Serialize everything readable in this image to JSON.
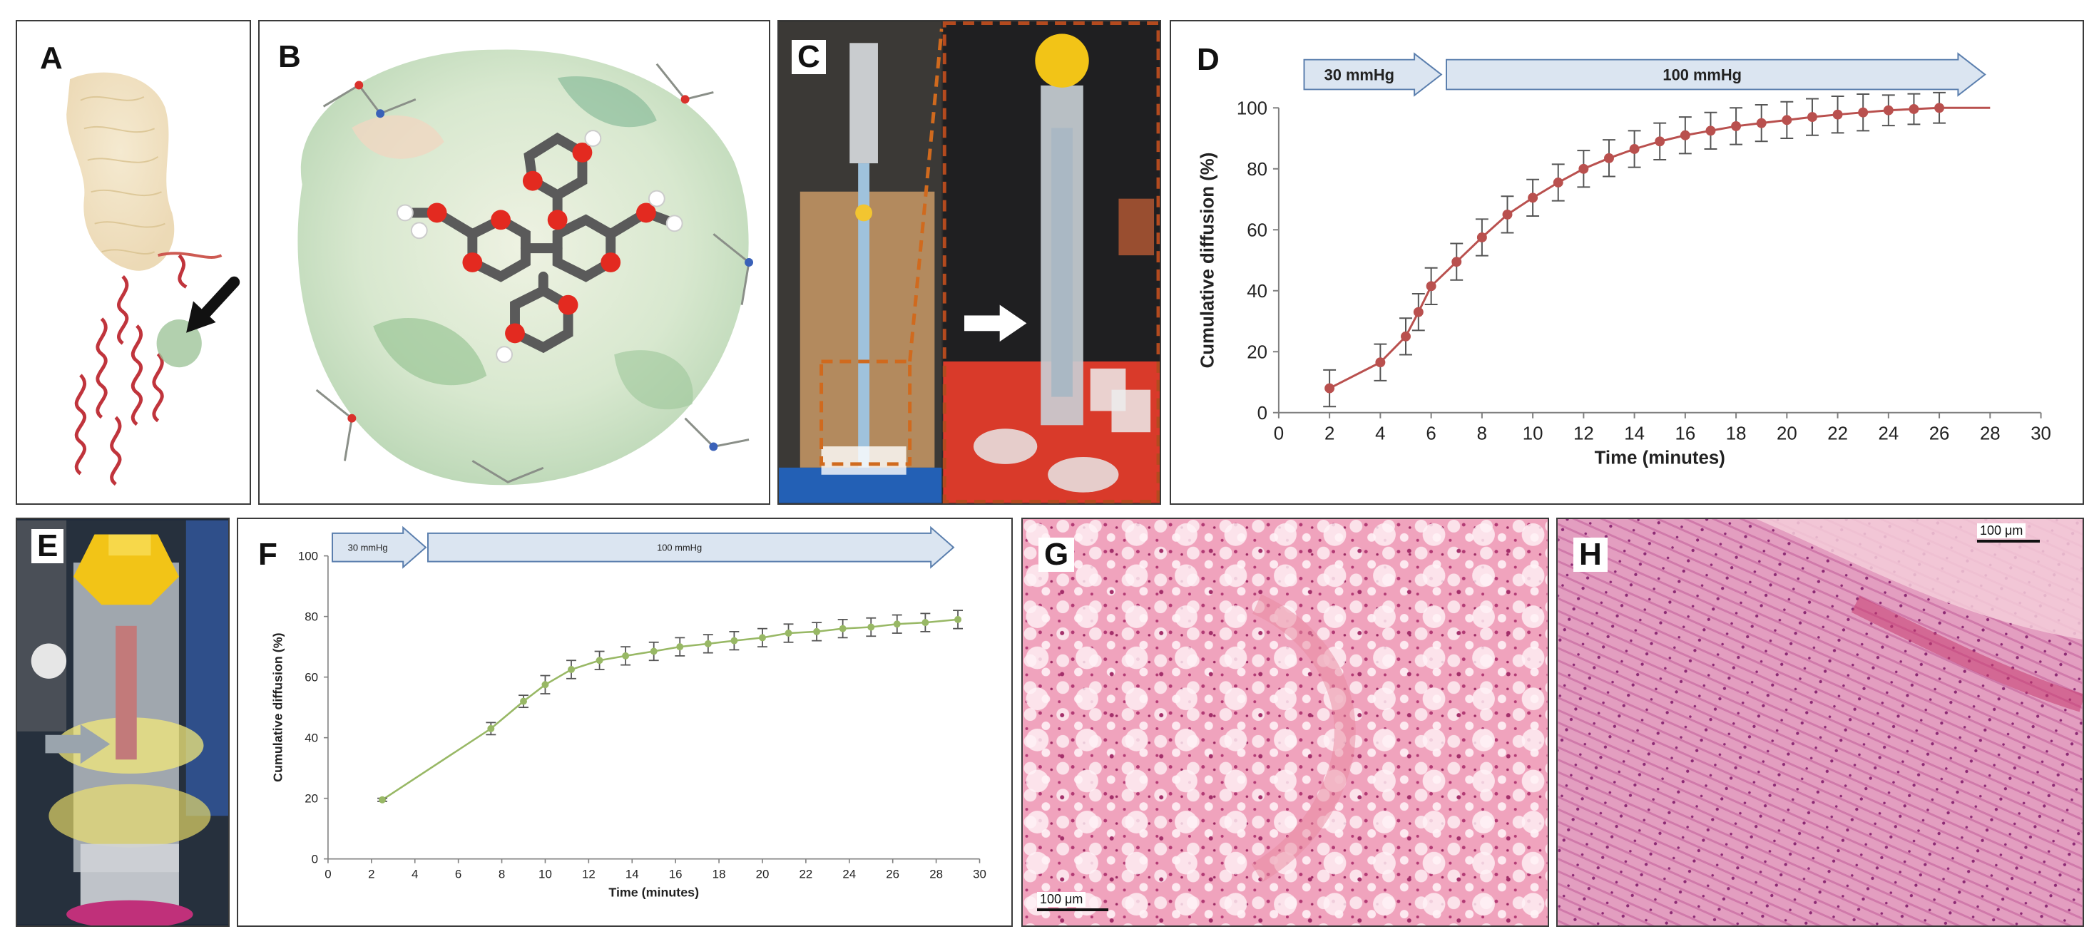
{
  "panels": {
    "a": {
      "label": "A"
    },
    "b": {
      "label": "B"
    },
    "c": {
      "label": "C"
    },
    "d": {
      "label": "D"
    },
    "e": {
      "label": "E"
    },
    "f": {
      "label": "F"
    },
    "g": {
      "label": "G",
      "scale_bar": "100 μm"
    },
    "h": {
      "label": "H",
      "scale_bar": "100 μm"
    }
  },
  "colors": {
    "chart_d_series": "#b9504e",
    "chart_f_series": "#98b865",
    "arrow_fill": "#dbe5f1",
    "arrow_stroke": "#5b7fae",
    "he_stain_bg": "#f2a9c2",
    "he_stain_dark": "#c7407e"
  },
  "chart_data": [
    {
      "id": "D",
      "type": "line",
      "title": "",
      "xlabel": "Time (minutes)",
      "ylabel": "Cumulative diffusion (%)",
      "xlim": [
        0,
        30
      ],
      "ylim": [
        0,
        100
      ],
      "xticks": [
        0,
        2,
        4,
        6,
        8,
        10,
        12,
        14,
        16,
        18,
        20,
        22,
        24,
        26,
        28,
        30
      ],
      "yticks": [
        0,
        20,
        40,
        60,
        80,
        100
      ],
      "pressure_phases": [
        {
          "label": "30 mmHg",
          "from": 1,
          "to": 6.4
        },
        {
          "label": "100 mmHg",
          "from": 6.6,
          "to": 27.8
        }
      ],
      "series": [
        {
          "name": "Cumulative diffusion",
          "x": [
            2,
            4,
            5,
            5.5,
            6,
            7,
            8,
            9,
            10,
            11,
            12,
            13,
            14,
            15,
            16,
            17,
            18,
            19,
            20,
            21,
            22,
            23,
            24,
            25,
            26,
            28
          ],
          "y": [
            8,
            16.5,
            25,
            33,
            41.5,
            49.5,
            57.5,
            65,
            70.5,
            75.5,
            80,
            83.5,
            86.5,
            89,
            91,
            92.5,
            94,
            95,
            96,
            97,
            97.8,
            98.5,
            99.2,
            99.6,
            100,
            100
          ],
          "err": [
            6,
            6,
            6,
            6,
            6,
            6,
            6,
            6,
            6,
            6,
            6,
            6,
            6,
            6,
            6,
            6,
            6,
            6,
            6,
            6,
            6,
            6,
            5,
            5,
            5,
            0
          ]
        }
      ]
    },
    {
      "id": "F",
      "type": "line",
      "title": "",
      "xlabel": "Time (minutes)",
      "ylabel": "Cumulative diffusion (%)",
      "xlim": [
        0,
        30
      ],
      "ylim": [
        0,
        100
      ],
      "xticks": [
        0,
        2,
        4,
        6,
        8,
        10,
        12,
        14,
        16,
        18,
        20,
        22,
        24,
        26,
        28,
        30
      ],
      "yticks": [
        0,
        20,
        40,
        60,
        80,
        100
      ],
      "pressure_phases": [
        {
          "label": "30 mmHg",
          "from": 0.2,
          "to": 4.5
        },
        {
          "label": "100 mmHg",
          "from": 4.6,
          "to": 28.8
        }
      ],
      "series": [
        {
          "name": "Cumulative diffusion",
          "x": [
            2.5,
            7.5,
            9,
            10,
            11.2,
            12.5,
            13.7,
            15,
            16.2,
            17.5,
            18.7,
            20,
            21.2,
            22.5,
            23.7,
            25,
            26.2,
            27.5,
            29
          ],
          "y": [
            19.5,
            43,
            52,
            57.5,
            62.5,
            65.5,
            67,
            68.5,
            70,
            71,
            72,
            73,
            74.5,
            75,
            76,
            76.5,
            77.5,
            78,
            79
          ],
          "err": [
            0.5,
            2,
            2,
            3,
            3,
            3,
            3,
            3,
            3,
            3,
            3,
            3,
            3,
            3,
            3,
            3,
            3,
            3,
            3
          ]
        }
      ]
    }
  ]
}
